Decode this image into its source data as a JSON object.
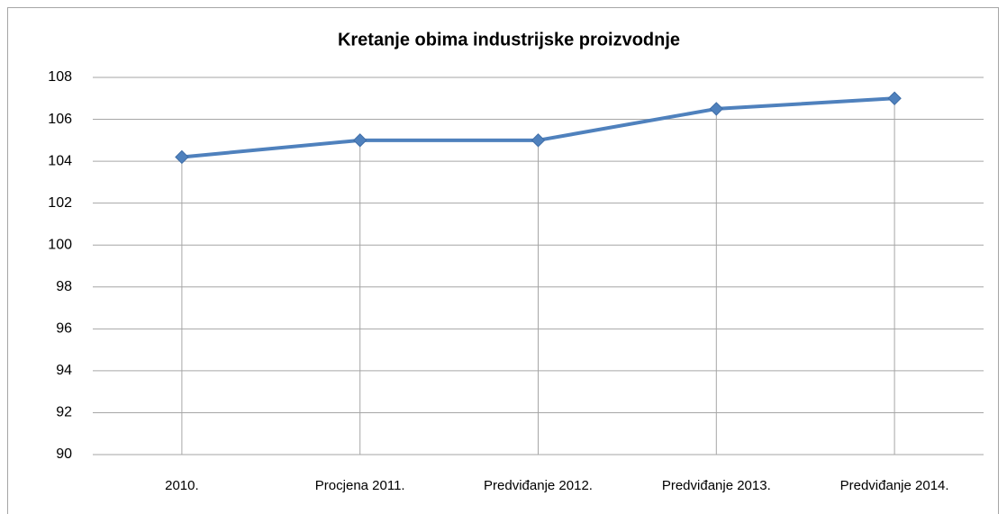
{
  "chart_data": {
    "type": "line",
    "title": "Kretanje obima industrijske proizvodnje",
    "categories": [
      "2010.",
      "Procjena 2011.",
      "Predviđanje 2012.",
      "Predviđanje 2013.",
      "Predviđanje 2014."
    ],
    "values": [
      104.2,
      105,
      105,
      106.5,
      107
    ],
    "color": "#4f81bd",
    "ylim": [
      90,
      108
    ],
    "yticks": [
      90,
      92,
      94,
      96,
      98,
      100,
      102,
      104,
      106,
      108
    ],
    "grid": true,
    "drop_lines": true
  }
}
